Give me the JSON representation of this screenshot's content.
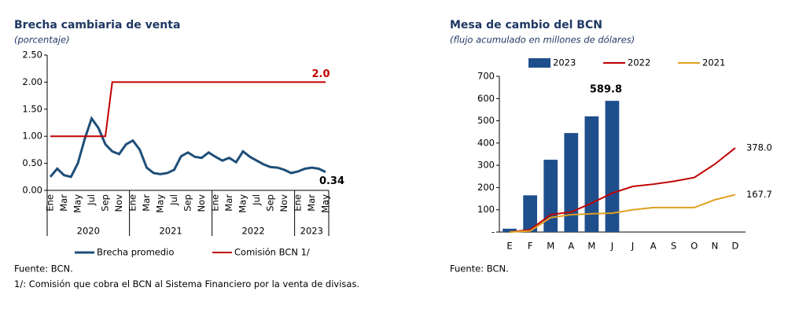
{
  "chart_data": [
    {
      "type": "line",
      "title": "Brecha cambiaria de venta",
      "subtitle": "(porcentaje)",
      "categories": [
        "Ene",
        null,
        "Mar",
        null,
        "May",
        null,
        "Jul",
        null,
        "Sep",
        null,
        "Nov",
        null,
        "Ene",
        null,
        "Mar",
        null,
        "May",
        null,
        "Jul",
        null,
        "Sep",
        null,
        "Nov",
        null,
        "Ene",
        null,
        "Mar",
        null,
        "May",
        null,
        "Jul",
        null,
        "Sep",
        null,
        "Nov",
        null,
        "Ene",
        null,
        "Mar",
        null,
        "May"
      ],
      "x_groups": [
        "2020",
        "2021",
        "2022",
        "2023"
      ],
      "series": [
        {
          "name": "Brecha promedio",
          "color": "#1f4e79",
          "values": [
            0.25,
            0.4,
            0.28,
            0.25,
            0.5,
            0.95,
            1.33,
            1.15,
            0.85,
            0.72,
            0.67,
            0.85,
            0.92,
            0.75,
            0.42,
            0.32,
            0.3,
            0.32,
            0.38,
            0.63,
            0.7,
            0.62,
            0.6,
            0.7,
            0.62,
            0.55,
            0.6,
            0.52,
            0.72,
            0.62,
            0.55,
            0.48,
            0.43,
            0.42,
            0.38,
            0.32,
            0.35,
            0.4,
            0.42,
            0.4,
            0.34
          ],
          "value_labels": [
            null,
            null,
            null,
            null,
            null,
            null,
            null,
            null,
            null,
            null,
            null,
            null,
            null,
            null,
            null,
            null,
            null,
            null,
            null,
            null,
            null,
            null,
            null,
            null,
            null,
            null,
            null,
            null,
            null,
            null,
            null,
            null,
            null,
            null,
            null,
            null,
            null,
            null,
            null,
            null,
            "0.34"
          ]
        },
        {
          "name": "Comisión BCN 1/",
          "color": "#c00000",
          "values": [
            1,
            1,
            1,
            1,
            1,
            1,
            1,
            1,
            1,
            2,
            2,
            2,
            2,
            2,
            2,
            2,
            2,
            2,
            2,
            2,
            2,
            2,
            2,
            2,
            2,
            2,
            2,
            2,
            2,
            2,
            2,
            2,
            2,
            2,
            2,
            2,
            2,
            2,
            2,
            2,
            2
          ],
          "value_labels": [
            null,
            null,
            null,
            null,
            null,
            null,
            null,
            null,
            null,
            null,
            null,
            null,
            null,
            null,
            null,
            null,
            null,
            null,
            null,
            null,
            null,
            null,
            null,
            null,
            null,
            null,
            null,
            null,
            null,
            null,
            null,
            null,
            null,
            null,
            null,
            null,
            null,
            null,
            null,
            null,
            "2.0"
          ]
        }
      ],
      "ylim": [
        0,
        2.5
      ],
      "yticks": [
        {
          "value": 0,
          "label": "0.00"
        },
        {
          "value": 0.5,
          "label": "0.50"
        },
        {
          "value": 1,
          "label": "1.00"
        },
        {
          "value": 1.5,
          "label": "1.50"
        },
        {
          "value": 2,
          "label": "2.00"
        },
        {
          "value": 2.5,
          "label": "2.50"
        }
      ],
      "grid": false,
      "legend": "bottom",
      "source": "Fuente: BCN.",
      "note": "1/: Comisión que cobra el BCN al Sistema Financiero por la venta de divisas."
    },
    {
      "type": "bar",
      "title": "Mesa de cambio del BCN",
      "subtitle": "(flujo acumulado en millones de dólares)",
      "categories": [
        "E",
        "F",
        "M",
        "A",
        "M",
        "J",
        "J",
        "A",
        "S",
        "O",
        "N",
        "D"
      ],
      "series": [
        {
          "name": "2023",
          "type": "bar",
          "color": "#1f4e8c",
          "values": [
            15,
            165,
            325,
            445,
            520,
            589.8,
            null,
            null,
            null,
            null,
            null,
            null
          ],
          "value_labels": [
            null,
            null,
            null,
            null,
            null,
            "589.8",
            null,
            null,
            null,
            null,
            null,
            null
          ]
        },
        {
          "name": "2022",
          "type": "line",
          "color": "#c00000",
          "values": [
            0,
            10,
            78,
            90,
            130,
            175,
            205,
            215,
            228,
            245,
            305,
            378
          ],
          "value_labels": [
            null,
            null,
            null,
            null,
            null,
            null,
            null,
            null,
            null,
            null,
            null,
            "378.0"
          ]
        },
        {
          "name": "2021",
          "type": "line",
          "color": "#e0a020",
          "values": [
            0,
            5,
            65,
            78,
            82,
            85,
            100,
            110,
            110,
            110,
            145,
            167.7
          ],
          "value_labels": [
            null,
            null,
            null,
            null,
            null,
            null,
            null,
            null,
            null,
            null,
            null,
            "167.7"
          ]
        }
      ],
      "ylim": [
        0,
        700
      ],
      "yticks": [
        {
          "value": 0,
          "label": "-"
        },
        100,
        200,
        300,
        400,
        500,
        600,
        700
      ],
      "grid": false,
      "legend": "top",
      "source": "Fuente: BCN."
    }
  ]
}
